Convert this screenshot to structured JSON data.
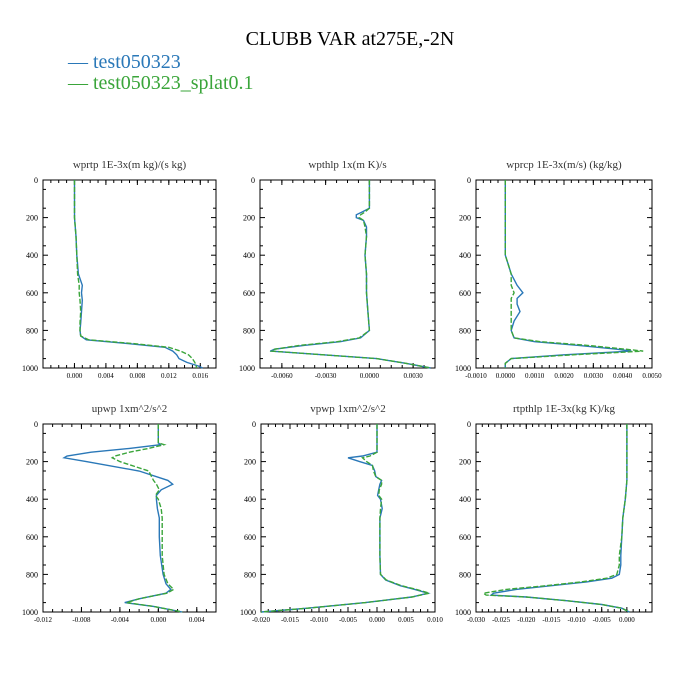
{
  "title": "CLUBB VAR at275E,-2N",
  "legend": [
    {
      "label": "test050323",
      "color": "#2a78b8",
      "symbol": "—"
    },
    {
      "label": "test050323_splat0.1",
      "color": "#3aa53a",
      "symbol": "—"
    }
  ],
  "chart_data": [
    {
      "type": "line",
      "title": "wprtp  1E-3x(m kg)/(s kg)",
      "xlim": [
        -0.004,
        0.018
      ],
      "xticks": [
        0.0,
        0.004,
        0.008,
        0.012,
        0.016
      ],
      "xtick_labels": [
        "0.000",
        "0.004",
        "0.008",
        "0.012",
        "0.016"
      ],
      "ylim": [
        0,
        1000
      ],
      "yticks": [
        0,
        200,
        400,
        600,
        800,
        1000
      ],
      "y": [
        0,
        100,
        200,
        300,
        400,
        500,
        560,
        600,
        640,
        700,
        760,
        800,
        830,
        850,
        870,
        890,
        910,
        930,
        950,
        970,
        990,
        1000
      ],
      "series": [
        {
          "name": "test050323",
          "color": "#2a78b8",
          "dash": false,
          "values": [
            0,
            0,
            0,
            0.0002,
            0.0003,
            0.0005,
            0.001,
            0.0009,
            0.001,
            0.0009,
            0.0008,
            0.0007,
            0.0008,
            0.0015,
            0.0068,
            0.0115,
            0.0125,
            0.013,
            0.0133,
            0.0143,
            0.0158,
            0.0163
          ]
        },
        {
          "name": "test050323_splat0.1",
          "color": "#3aa53a",
          "dash": true,
          "values": [
            0,
            0,
            0,
            0.0002,
            0.0003,
            0.0004,
            0.0006,
            0.0006,
            0.0007,
            0.0008,
            0.0007,
            0.0007,
            0.0008,
            0.0018,
            0.0075,
            0.012,
            0.0135,
            0.0145,
            0.015,
            0.0153,
            0.0155,
            0.0155
          ]
        }
      ]
    },
    {
      "type": "line",
      "title": "wpthlp  1x(m K)/s",
      "xlim": [
        -0.0075,
        0.0045
      ],
      "xticks": [
        -0.006,
        -0.003,
        0.0,
        0.003
      ],
      "xtick_labels": [
        "-0.0060",
        "-0.0030",
        "0.0000",
        "0.0030"
      ],
      "ylim": [
        0,
        1000
      ],
      "yticks": [
        0,
        200,
        400,
        600,
        800,
        1000
      ],
      "y": [
        0,
        100,
        150,
        170,
        185,
        200,
        215,
        250,
        300,
        400,
        500,
        600,
        700,
        800,
        840,
        860,
        880,
        900,
        910,
        925,
        950,
        975,
        1000
      ],
      "series": [
        {
          "name": "test050323",
          "color": "#2a78b8",
          "dash": false,
          "values": [
            0,
            0,
            0,
            -0.0005,
            -0.0009,
            -0.0009,
            -0.0004,
            -0.0002,
            -0.0002,
            -0.0003,
            -0.0002,
            -0.0002,
            -0.0001,
            0,
            -0.0006,
            -0.002,
            -0.0045,
            -0.0065,
            -0.0068,
            -0.004,
            0.0005,
            0.0025,
            0.0042
          ]
        },
        {
          "name": "test050323_splat0.1",
          "color": "#3aa53a",
          "dash": true,
          "values": [
            0,
            0,
            0,
            -0.0003,
            -0.0006,
            -0.0007,
            -0.0004,
            -0.0003,
            -0.0002,
            -0.0003,
            -0.0002,
            -0.0002,
            -0.0001,
            0,
            -0.0007,
            -0.0022,
            -0.0048,
            -0.0065,
            -0.0067,
            -0.004,
            0.0005,
            0.0025,
            0.0042
          ]
        }
      ]
    },
    {
      "type": "line",
      "title": "wprcp  1E-3x(m/s) (kg/kg)",
      "xlim": [
        -0.001,
        0.005
      ],
      "xticks": [
        -0.001,
        0.0,
        0.001,
        0.002,
        0.003,
        0.004,
        0.005
      ],
      "xtick_labels": [
        "-0.0010",
        "0.0000",
        "0.0010",
        "0.0020",
        "0.0030",
        "0.0040",
        "0.0050"
      ],
      "ylim": [
        0,
        1000
      ],
      "yticks": [
        0,
        200,
        400,
        600,
        800,
        1000
      ],
      "y": [
        0,
        100,
        200,
        300,
        400,
        450,
        500,
        560,
        600,
        630,
        660,
        700,
        750,
        800,
        840,
        860,
        880,
        900,
        910,
        930,
        950,
        975,
        1000
      ],
      "series": [
        {
          "name": "test050323",
          "color": "#2a78b8",
          "dash": false,
          "values": [
            0,
            0,
            0,
            0,
            0,
            0.0001,
            0.0002,
            0.0004,
            0.0006,
            0.0004,
            0.0004,
            0.0005,
            0.0003,
            0.0002,
            0.0003,
            0.001,
            0.0025,
            0.0038,
            0.0043,
            0.002,
            0.0002,
            0,
            0
          ]
        },
        {
          "name": "test050323_splat0.1",
          "color": "#3aa53a",
          "dash": true,
          "values": [
            0,
            0,
            0,
            0,
            0,
            0.0001,
            0.0002,
            0.0002,
            0.0003,
            0.0002,
            0.0002,
            0.0002,
            0.0002,
            0.0002,
            0.0003,
            0.0012,
            0.0028,
            0.0041,
            0.0047,
            0.0023,
            0.0002,
            0,
            0
          ]
        }
      ]
    },
    {
      "type": "line",
      "title": "upwp  1xm^2/s^2",
      "xlim": [
        -0.012,
        0.006
      ],
      "xticks": [
        -0.012,
        -0.008,
        -0.004,
        0.0,
        0.004
      ],
      "xtick_labels": [
        "-0.012",
        "-0.008",
        "-0.004",
        "0.000",
        "0.004"
      ],
      "ylim": [
        0,
        1000
      ],
      "yticks": [
        0,
        200,
        400,
        600,
        800,
        1000
      ],
      "y": [
        0,
        100,
        110,
        130,
        150,
        170,
        180,
        200,
        250,
        300,
        320,
        350,
        380,
        400,
        450,
        500,
        600,
        700,
        800,
        850,
        880,
        900,
        930,
        950,
        970,
        1000
      ],
      "series": [
        {
          "name": "test050323",
          "color": "#2a78b8",
          "dash": false,
          "values": [
            0,
            0,
            0.0002,
            -0.003,
            -0.007,
            -0.0095,
            -0.0098,
            -0.0075,
            -0.002,
            0.001,
            0.0015,
            0.0003,
            -0.0002,
            -0.0002,
            -0.0001,
            0.0001,
            0.0001,
            0.0002,
            0.0005,
            0.0008,
            0.0013,
            0.0008,
            -0.002,
            -0.0035,
            -0.0005,
            0.0025
          ]
        },
        {
          "name": "test050323_splat0.1",
          "color": "#3aa53a",
          "dash": true,
          "values": [
            0,
            0,
            0.0006,
            -0.001,
            -0.003,
            -0.0045,
            -0.0048,
            -0.004,
            -0.001,
            -0.0005,
            -0.0002,
            0.0001,
            -0.0003,
            0,
            0.0003,
            0.0004,
            0.0004,
            0.0004,
            0.0006,
            0.001,
            0.0016,
            0.0009,
            -0.002,
            -0.0033,
            -0.0005,
            0.0025
          ]
        }
      ]
    },
    {
      "type": "line",
      "title": "vpwp  1xm^2/s^2",
      "xlim": [
        -0.02,
        0.01
      ],
      "xticks": [
        -0.02,
        -0.015,
        -0.01,
        -0.005,
        0.0,
        0.005,
        0.01
      ],
      "xtick_labels": [
        "-0.020",
        "-0.015",
        "-0.010",
        "-0.005",
        "0.000",
        "0.005",
        "0.010"
      ],
      "ylim": [
        0,
        1000
      ],
      "yticks": [
        0,
        200,
        400,
        600,
        800,
        1000
      ],
      "y": [
        0,
        100,
        150,
        170,
        180,
        200,
        220,
        250,
        280,
        300,
        320,
        350,
        380,
        400,
        450,
        500,
        600,
        700,
        800,
        830,
        860,
        880,
        900,
        920,
        950,
        980,
        1000
      ],
      "series": [
        {
          "name": "test050323",
          "color": "#2a78b8",
          "dash": false,
          "values": [
            0,
            0,
            0,
            -0.0025,
            -0.005,
            -0.003,
            -0.0008,
            -0.0004,
            -0.0002,
            0.0008,
            0.0005,
            0.0003,
            0.0001,
            0.0006,
            0.0009,
            0.0005,
            0.0005,
            0.0005,
            0.0006,
            0.0015,
            0.004,
            0.0065,
            0.0088,
            0.006,
            -0.002,
            -0.012,
            -0.02
          ]
        },
        {
          "name": "test050323_splat0.1",
          "color": "#3aa53a",
          "dash": true,
          "values": [
            0,
            0,
            0,
            -0.0012,
            -0.0025,
            -0.0018,
            -0.0008,
            -0.0006,
            -0.0002,
            0.0008,
            0.0008,
            0.0004,
            0.0003,
            0.0008,
            0.0006,
            0.0005,
            0.0005,
            0.0005,
            0.0006,
            0.0016,
            0.0042,
            0.0068,
            0.009,
            0.006,
            -0.002,
            -0.012,
            -0.02
          ]
        }
      ]
    },
    {
      "type": "line",
      "title": "rtpthlp  1E-3x(kg K)/kg",
      "xlim": [
        -0.03,
        0.005
      ],
      "xticks": [
        -0.03,
        -0.025,
        -0.02,
        -0.015,
        -0.01,
        -0.005,
        0.0
      ],
      "xtick_labels": [
        "-0.030",
        "-0.025",
        "-0.020",
        "-0.015",
        "-0.010",
        "-0.005",
        "0.000"
      ],
      "ylim": [
        0,
        1000
      ],
      "yticks": [
        0,
        200,
        400,
        600,
        800,
        1000
      ],
      "y": [
        0,
        100,
        200,
        300,
        400,
        500,
        600,
        700,
        750,
        800,
        820,
        840,
        860,
        880,
        900,
        910,
        920,
        940,
        960,
        980,
        1000
      ],
      "series": [
        {
          "name": "test050323",
          "color": "#2a78b8",
          "dash": false,
          "values": [
            0,
            0,
            0,
            0,
            -0.0003,
            -0.0008,
            -0.001,
            -0.0012,
            -0.0012,
            -0.0015,
            -0.003,
            -0.008,
            -0.015,
            -0.022,
            -0.0265,
            -0.027,
            -0.02,
            -0.012,
            -0.005,
            -0.001,
            0.0005
          ]
        },
        {
          "name": "test050323_splat0.1",
          "color": "#3aa53a",
          "dash": true,
          "values": [
            0,
            0,
            0,
            0,
            -0.0003,
            -0.0008,
            -0.001,
            -0.0015,
            -0.0015,
            -0.002,
            -0.004,
            -0.009,
            -0.016,
            -0.024,
            -0.0285,
            -0.028,
            -0.02,
            -0.012,
            -0.005,
            -0.001,
            0.0005
          ]
        }
      ]
    }
  ]
}
